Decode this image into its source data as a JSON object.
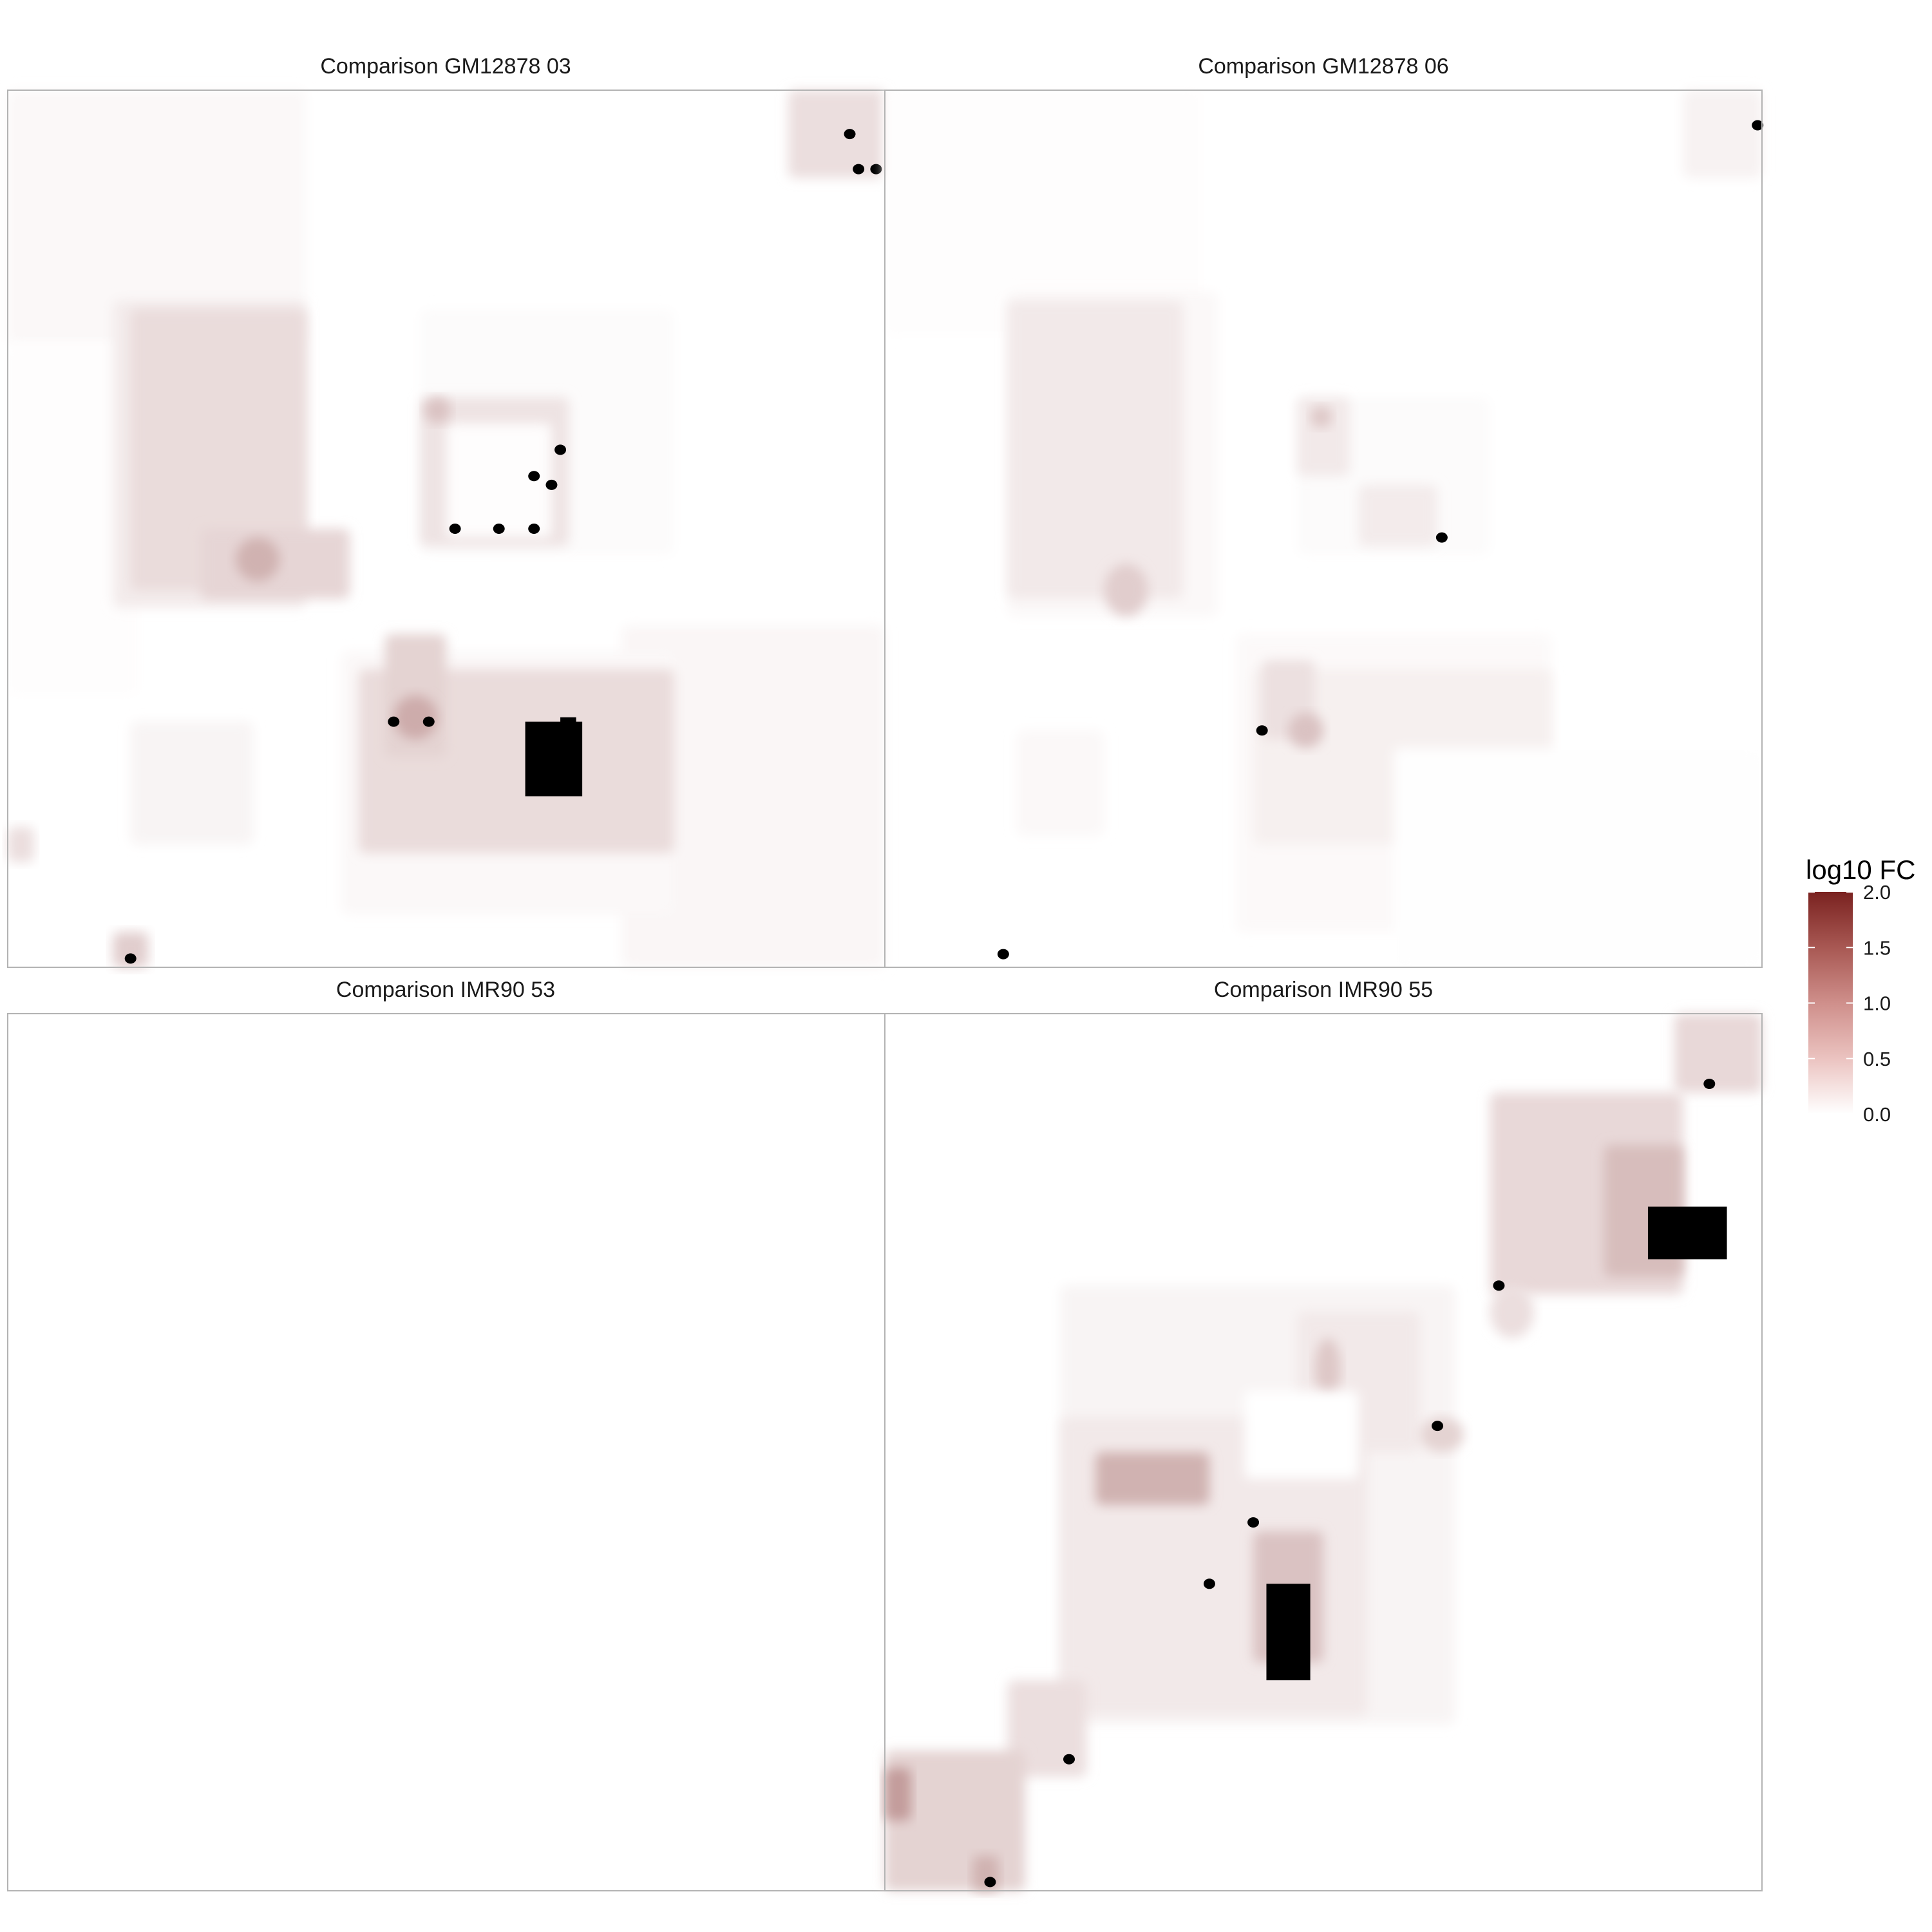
{
  "chart_data": {
    "type": "heatmap",
    "layout": "2x2 facet grid, shared colour scale",
    "grid": false,
    "axes_visible": false,
    "legend": {
      "title": "log10 FC",
      "position": "right",
      "ticks": [
        0.0,
        0.5,
        1.0,
        1.5,
        2.0
      ],
      "tick_labels": [
        "0.0",
        "0.5",
        "1.0",
        "1.5",
        "2.0"
      ],
      "limits": [
        0,
        2
      ],
      "colors": {
        "low": "#ffffff",
        "high": "#7a2220"
      },
      "out_of_range_color": "#000000"
    },
    "panels": [
      {
        "title": "Comparison GM12878 03",
        "regions": [
          {
            "shape": "rect",
            "x": 0.0,
            "y": 0.0,
            "w": 0.34,
            "h": 0.29,
            "value": 0.06
          },
          {
            "shape": "rect",
            "x": 0.0,
            "y": 0.29,
            "w": 0.15,
            "h": 0.4,
            "value": 0.02
          },
          {
            "shape": "rect",
            "x": 0.7,
            "y": 0.61,
            "w": 0.3,
            "h": 0.39,
            "value": 0.08
          },
          {
            "shape": "rect",
            "x": 0.12,
            "y": 0.24,
            "w": 0.22,
            "h": 0.35,
            "value": 0.18
          },
          {
            "shape": "rect",
            "x": 0.14,
            "y": 0.25,
            "w": 0.2,
            "h": 0.32,
            "value": 0.32
          },
          {
            "shape": "rect",
            "x": 0.22,
            "y": 0.5,
            "w": 0.17,
            "h": 0.08,
            "value": 0.38
          },
          {
            "shape": "ellipse",
            "x": 0.26,
            "y": 0.51,
            "w": 0.05,
            "h": 0.05,
            "value": 0.7
          },
          {
            "shape": "rect",
            "x": 0.47,
            "y": 0.25,
            "w": 0.29,
            "h": 0.28,
            "value": 0.04
          },
          {
            "shape": "rect",
            "x": 0.47,
            "y": 0.35,
            "w": 0.17,
            "h": 0.17,
            "value": 0.25
          },
          {
            "shape": "rect",
            "x": 0.5,
            "y": 0.38,
            "w": 0.12,
            "h": 0.13,
            "value": 0.02
          },
          {
            "shape": "ellipse",
            "x": 0.475,
            "y": 0.35,
            "w": 0.03,
            "h": 0.03,
            "value": 0.55
          },
          {
            "shape": "rect",
            "x": 0.38,
            "y": 0.64,
            "w": 0.38,
            "h": 0.3,
            "value": 0.06
          },
          {
            "shape": "rect",
            "x": 0.4,
            "y": 0.66,
            "w": 0.36,
            "h": 0.21,
            "value": 0.32
          },
          {
            "shape": "rect",
            "x": 0.43,
            "y": 0.62,
            "w": 0.07,
            "h": 0.14,
            "value": 0.4
          },
          {
            "shape": "ellipse",
            "x": 0.44,
            "y": 0.69,
            "w": 0.05,
            "h": 0.05,
            "value": 0.75
          },
          {
            "shape": "rect",
            "x": 0.14,
            "y": 0.72,
            "w": 0.14,
            "h": 0.14,
            "value": 0.1
          },
          {
            "shape": "rect",
            "x": 0.0,
            "y": 0.84,
            "w": 0.03,
            "h": 0.04,
            "value": 0.3
          },
          {
            "shape": "rect",
            "x": 0.12,
            "y": 0.96,
            "w": 0.04,
            "h": 0.04,
            "value": 0.45
          },
          {
            "shape": "rect",
            "x": 0.89,
            "y": 0.0,
            "w": 0.11,
            "h": 0.1,
            "value": 0.3
          },
          {
            "shape": "rect",
            "x": 0.59,
            "y": 0.72,
            "w": 0.065,
            "h": 0.085,
            "value": 2.6
          },
          {
            "shape": "rect",
            "x": 0.63,
            "y": 0.715,
            "w": 0.018,
            "h": 0.02,
            "value": 2.6
          },
          {
            "shape": "dots",
            "value": 2.6,
            "points": [
              [
                0.51,
                0.5
              ],
              [
                0.56,
                0.5
              ],
              [
                0.6,
                0.5
              ],
              [
                0.62,
                0.45
              ],
              [
                0.6,
                0.44
              ],
              [
                0.63,
                0.41
              ],
              [
                0.44,
                0.72
              ],
              [
                0.48,
                0.72
              ],
              [
                0.96,
                0.05
              ],
              [
                0.97,
                0.09
              ],
              [
                0.99,
                0.09
              ],
              [
                0.14,
                0.99
              ]
            ]
          }
        ]
      },
      {
        "title": "Comparison GM12878 06",
        "regions": [
          {
            "shape": "rect",
            "x": 0.0,
            "y": 0.0,
            "w": 0.36,
            "h": 0.28,
            "value": 0.02
          },
          {
            "shape": "rect",
            "x": 0.14,
            "y": 0.23,
            "w": 0.24,
            "h": 0.37,
            "value": 0.06
          },
          {
            "shape": "rect",
            "x": 0.14,
            "y": 0.24,
            "w": 0.2,
            "h": 0.34,
            "value": 0.2
          },
          {
            "shape": "ellipse",
            "x": 0.25,
            "y": 0.54,
            "w": 0.05,
            "h": 0.06,
            "value": 0.45
          },
          {
            "shape": "rect",
            "x": 0.47,
            "y": 0.35,
            "w": 0.22,
            "h": 0.18,
            "value": 0.04
          },
          {
            "shape": "rect",
            "x": 0.47,
            "y": 0.35,
            "w": 0.06,
            "h": 0.09,
            "value": 0.2
          },
          {
            "shape": "rect",
            "x": 0.54,
            "y": 0.45,
            "w": 0.09,
            "h": 0.07,
            "value": 0.18
          },
          {
            "shape": "ellipse",
            "x": 0.485,
            "y": 0.36,
            "w": 0.025,
            "h": 0.025,
            "value": 0.5
          },
          {
            "shape": "rect",
            "x": 0.4,
            "y": 0.62,
            "w": 0.36,
            "h": 0.34,
            "value": 0.05
          },
          {
            "shape": "rect",
            "x": 0.42,
            "y": 0.66,
            "w": 0.34,
            "h": 0.2,
            "value": 0.14
          },
          {
            "shape": "rect",
            "x": 0.43,
            "y": 0.65,
            "w": 0.06,
            "h": 0.09,
            "value": 0.28
          },
          {
            "shape": "ellipse",
            "x": 0.46,
            "y": 0.71,
            "w": 0.04,
            "h": 0.04,
            "value": 0.55
          },
          {
            "shape": "rect",
            "x": 0.58,
            "y": 0.75,
            "w": 0.42,
            "h": 0.25,
            "value": 0.01
          },
          {
            "shape": "rect",
            "x": 0.91,
            "y": 0.0,
            "w": 0.09,
            "h": 0.1,
            "value": 0.12
          },
          {
            "shape": "rect",
            "x": 0.15,
            "y": 0.73,
            "w": 0.1,
            "h": 0.12,
            "value": 0.06
          },
          {
            "shape": "dots",
            "value": 2.6,
            "points": [
              [
                0.635,
                0.51
              ],
              [
                0.43,
                0.73
              ],
              [
                0.995,
                0.04
              ],
              [
                0.135,
                0.985
              ]
            ]
          }
        ]
      },
      {
        "title": "Comparison IMR90 53",
        "regions": []
      },
      {
        "title": "Comparison IMR90 55",
        "regions": [
          {
            "shape": "rect",
            "x": 0.2,
            "y": 0.31,
            "w": 0.45,
            "h": 0.5,
            "value": 0.1
          },
          {
            "shape": "rect",
            "x": 0.2,
            "y": 0.46,
            "w": 0.35,
            "h": 0.34,
            "value": 0.2
          },
          {
            "shape": "rect",
            "x": 0.24,
            "y": 0.5,
            "w": 0.13,
            "h": 0.06,
            "value": 0.7
          },
          {
            "shape": "rect",
            "x": 0.42,
            "y": 0.59,
            "w": 0.08,
            "h": 0.15,
            "value": 0.55
          },
          {
            "shape": "rect",
            "x": 0.47,
            "y": 0.34,
            "w": 0.14,
            "h": 0.16,
            "value": 0.2
          },
          {
            "shape": "ellipse",
            "x": 0.49,
            "y": 0.37,
            "w": 0.03,
            "h": 0.07,
            "value": 0.5
          },
          {
            "shape": "ellipse",
            "x": 0.61,
            "y": 0.46,
            "w": 0.05,
            "h": 0.04,
            "value": 0.4
          },
          {
            "shape": "rect",
            "x": 0.41,
            "y": 0.43,
            "w": 0.13,
            "h": 0.1,
            "value": 0.0
          },
          {
            "shape": "rect",
            "x": 0.69,
            "y": 0.09,
            "w": 0.22,
            "h": 0.23,
            "value": 0.35
          },
          {
            "shape": "rect",
            "x": 0.82,
            "y": 0.15,
            "w": 0.09,
            "h": 0.15,
            "value": 0.6
          },
          {
            "shape": "rect",
            "x": 0.9,
            "y": 0.0,
            "w": 0.1,
            "h": 0.09,
            "value": 0.35
          },
          {
            "shape": "ellipse",
            "x": 0.69,
            "y": 0.31,
            "w": 0.05,
            "h": 0.06,
            "value": 0.3
          },
          {
            "shape": "rect",
            "x": 0.14,
            "y": 0.76,
            "w": 0.09,
            "h": 0.11,
            "value": 0.3
          },
          {
            "shape": "rect",
            "x": 0.0,
            "y": 0.84,
            "w": 0.16,
            "h": 0.16,
            "value": 0.4
          },
          {
            "shape": "rect",
            "x": 0.0,
            "y": 0.86,
            "w": 0.03,
            "h": 0.06,
            "value": 0.9
          },
          {
            "shape": "rect",
            "x": 0.1,
            "y": 0.96,
            "w": 0.03,
            "h": 0.04,
            "value": 0.7
          },
          {
            "shape": "rect",
            "x": 0.87,
            "y": 0.22,
            "w": 0.09,
            "h": 0.06,
            "value": 2.6
          },
          {
            "shape": "rect",
            "x": 0.435,
            "y": 0.65,
            "w": 0.05,
            "h": 0.11,
            "value": 2.6
          },
          {
            "shape": "dots",
            "value": 2.6,
            "points": [
              [
                0.37,
                0.65
              ],
              [
                0.42,
                0.58
              ],
              [
                0.63,
                0.47
              ],
              [
                0.21,
                0.85
              ],
              [
                0.7,
                0.31
              ],
              [
                0.94,
                0.08
              ],
              [
                0.12,
                0.99
              ]
            ]
          }
        ]
      }
    ]
  }
}
